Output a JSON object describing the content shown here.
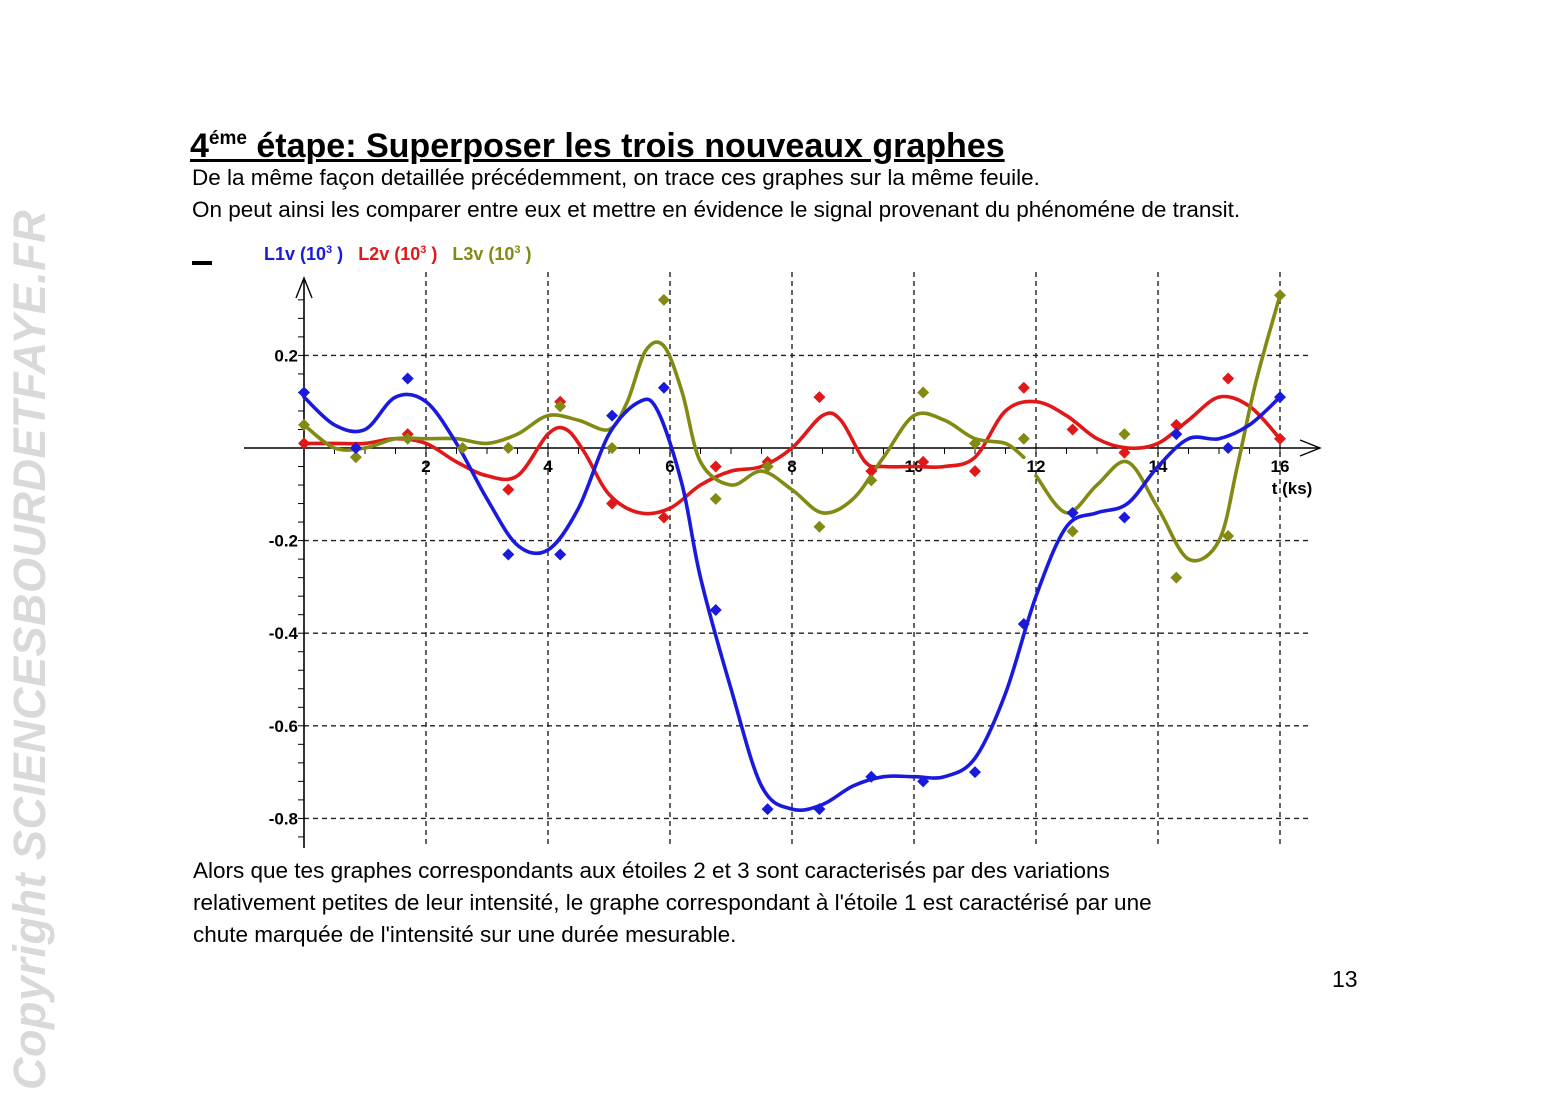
{
  "watermark": "Copyright SCIENCESBOURDETFAYE.FR",
  "title": {
    "prefix": "4",
    "sup": "éme",
    "rest": " étape: Superposer les trois nouveaux graphes"
  },
  "intro": [
    "De la même façon detaillée précédemment, on trace ces graphes sur la même feuile.",
    "On peut ainsi les comparer entre eux et mettre en évidence le signal provenant du phénoméne de transit."
  ],
  "conclusion": [
    "Alors que tes graphes correspondants aux étoiles 2 et 3 sont caracterisés par  des variations",
    "relativement  petites de leur intensité, le graphe correspondant à l'étoile 1 est  caractérisé par une",
    "chute marquée de l'intensité sur une durée mesurable."
  ],
  "page_number": "13",
  "chart_data": {
    "type": "line",
    "xlabel": "t (ks)",
    "ylabel": "",
    "xlim": [
      0,
      16
    ],
    "ylim": [
      -0.85,
      0.34
    ],
    "x_ticks": [
      "2",
      "4",
      "6",
      "8",
      "10",
      "12",
      "14",
      "16"
    ],
    "y_ticks": [
      "0.2",
      "-0.2",
      "-0.4",
      "-0.6",
      "-0.8"
    ],
    "grid": true,
    "legend_position": "top-left",
    "series": [
      {
        "name": "L1v (10",
        "name_sup": "3",
        "name_end": " )",
        "color": "#1a1adc",
        "points": [
          [
            0.0,
            0.12
          ],
          [
            0.85,
            0.0
          ],
          [
            1.7,
            0.15
          ],
          [
            3.35,
            -0.23
          ],
          [
            4.2,
            -0.23
          ],
          [
            5.05,
            0.07
          ],
          [
            5.9,
            0.13
          ],
          [
            6.75,
            -0.35
          ],
          [
            7.6,
            -0.78
          ],
          [
            8.45,
            -0.78
          ],
          [
            9.3,
            -0.71
          ],
          [
            10.15,
            -0.72
          ],
          [
            11.0,
            -0.7
          ],
          [
            11.8,
            -0.38
          ],
          [
            12.6,
            -0.14
          ],
          [
            13.45,
            -0.15
          ],
          [
            14.3,
            0.03
          ],
          [
            15.15,
            0.0
          ],
          [
            16.0,
            0.11
          ]
        ],
        "curve": [
          [
            0.0,
            0.11
          ],
          [
            0.5,
            0.05
          ],
          [
            1.0,
            0.04
          ],
          [
            1.5,
            0.11
          ],
          [
            2.0,
            0.1
          ],
          [
            2.5,
            0.01
          ],
          [
            3.0,
            -0.11
          ],
          [
            3.5,
            -0.21
          ],
          [
            4.0,
            -0.22
          ],
          [
            4.5,
            -0.13
          ],
          [
            5.0,
            0.03
          ],
          [
            5.5,
            0.1
          ],
          [
            5.8,
            0.08
          ],
          [
            6.2,
            -0.08
          ],
          [
            6.5,
            -0.28
          ],
          [
            7.0,
            -0.52
          ],
          [
            7.5,
            -0.73
          ],
          [
            8.0,
            -0.78
          ],
          [
            8.5,
            -0.77
          ],
          [
            9.0,
            -0.73
          ],
          [
            9.5,
            -0.71
          ],
          [
            10.0,
            -0.71
          ],
          [
            10.5,
            -0.71
          ],
          [
            11.0,
            -0.67
          ],
          [
            11.5,
            -0.53
          ],
          [
            12.0,
            -0.32
          ],
          [
            12.5,
            -0.17
          ],
          [
            13.0,
            -0.14
          ],
          [
            13.5,
            -0.12
          ],
          [
            14.0,
            -0.04
          ],
          [
            14.5,
            0.02
          ],
          [
            15.0,
            0.02
          ],
          [
            15.5,
            0.05
          ],
          [
            16.0,
            0.11
          ]
        ]
      },
      {
        "name": "L2v (10",
        "name_sup": "3",
        "name_end": " )",
        "color": "#e01818",
        "points": [
          [
            0.0,
            0.01
          ],
          [
            0.85,
            0.0
          ],
          [
            1.7,
            0.03
          ],
          [
            3.35,
            -0.09
          ],
          [
            4.2,
            0.1
          ],
          [
            5.05,
            -0.12
          ],
          [
            5.9,
            -0.15
          ],
          [
            6.75,
            -0.04
          ],
          [
            7.6,
            -0.03
          ],
          [
            8.45,
            0.11
          ],
          [
            9.3,
            -0.05
          ],
          [
            10.15,
            -0.03
          ],
          [
            11.0,
            -0.05
          ],
          [
            11.8,
            0.13
          ],
          [
            12.6,
            0.04
          ],
          [
            13.45,
            -0.01
          ],
          [
            14.3,
            0.05
          ],
          [
            15.15,
            0.15
          ],
          [
            16.0,
            0.02
          ]
        ],
        "curve": [
          [
            0.0,
            0.01
          ],
          [
            0.5,
            0.01
          ],
          [
            1.0,
            0.01
          ],
          [
            1.5,
            0.02
          ],
          [
            2.0,
            0.01
          ],
          [
            2.5,
            -0.03
          ],
          [
            3.0,
            -0.06
          ],
          [
            3.5,
            -0.06
          ],
          [
            4.0,
            0.03
          ],
          [
            4.3,
            0.04
          ],
          [
            4.6,
            -0.01
          ],
          [
            5.0,
            -0.1
          ],
          [
            5.5,
            -0.14
          ],
          [
            6.0,
            -0.13
          ],
          [
            6.5,
            -0.08
          ],
          [
            7.0,
            -0.05
          ],
          [
            7.5,
            -0.04
          ],
          [
            8.0,
            0.0
          ],
          [
            8.5,
            0.07
          ],
          [
            8.8,
            0.06
          ],
          [
            9.2,
            -0.03
          ],
          [
            9.5,
            -0.04
          ],
          [
            10.0,
            -0.04
          ],
          [
            10.5,
            -0.04
          ],
          [
            11.0,
            -0.02
          ],
          [
            11.5,
            0.08
          ],
          [
            12.0,
            0.1
          ],
          [
            12.5,
            0.07
          ],
          [
            13.0,
            0.02
          ],
          [
            13.5,
            0.0
          ],
          [
            14.0,
            0.01
          ],
          [
            14.5,
            0.06
          ],
          [
            15.0,
            0.11
          ],
          [
            15.5,
            0.09
          ],
          [
            16.0,
            0.02
          ]
        ]
      },
      {
        "name": "L3v (10",
        "name_sup": "3",
        "name_end": " )",
        "color": "#838a14",
        "points": [
          [
            0.0,
            0.05
          ],
          [
            0.85,
            -0.02
          ],
          [
            1.7,
            0.02
          ],
          [
            2.6,
            0.0
          ],
          [
            3.35,
            0.0
          ],
          [
            4.2,
            0.09
          ],
          [
            5.05,
            0.0
          ],
          [
            5.9,
            0.32
          ],
          [
            6.75,
            -0.11
          ],
          [
            7.6,
            -0.04
          ],
          [
            8.45,
            -0.17
          ],
          [
            9.3,
            -0.07
          ],
          [
            10.15,
            0.12
          ],
          [
            11.0,
            0.01
          ],
          [
            11.8,
            0.02
          ],
          [
            12.6,
            -0.18
          ],
          [
            13.45,
            0.03
          ],
          [
            14.3,
            -0.28
          ],
          [
            15.15,
            -0.19
          ],
          [
            16.0,
            0.33
          ]
        ],
        "curve": [
          [
            0.0,
            0.05
          ],
          [
            0.5,
            0.0
          ],
          [
            1.0,
            0.0
          ],
          [
            1.5,
            0.02
          ],
          [
            2.0,
            0.02
          ],
          [
            2.5,
            0.02
          ],
          [
            3.0,
            0.01
          ],
          [
            3.5,
            0.03
          ],
          [
            4.0,
            0.07
          ],
          [
            4.5,
            0.06
          ],
          [
            5.0,
            0.04
          ],
          [
            5.3,
            0.1
          ],
          [
            5.6,
            0.21
          ],
          [
            5.9,
            0.22
          ],
          [
            6.2,
            0.12
          ],
          [
            6.5,
            -0.03
          ],
          [
            7.0,
            -0.08
          ],
          [
            7.5,
            -0.05
          ],
          [
            8.0,
            -0.09
          ],
          [
            8.5,
            -0.14
          ],
          [
            9.0,
            -0.11
          ],
          [
            9.5,
            -0.02
          ],
          [
            10.0,
            0.07
          ],
          [
            10.5,
            0.06
          ],
          [
            11.0,
            0.02
          ],
          [
            11.5,
            0.01
          ],
          [
            11.8,
            -0.02
          ]
        ],
        "curve2": [
          [
            12.0,
            -0.06
          ],
          [
            12.5,
            -0.14
          ],
          [
            13.0,
            -0.08
          ],
          [
            13.5,
            -0.03
          ],
          [
            14.0,
            -0.13
          ],
          [
            14.5,
            -0.24
          ],
          [
            15.0,
            -0.2
          ],
          [
            15.3,
            -0.04
          ],
          [
            15.6,
            0.14
          ],
          [
            16.0,
            0.33
          ]
        ]
      }
    ]
  }
}
